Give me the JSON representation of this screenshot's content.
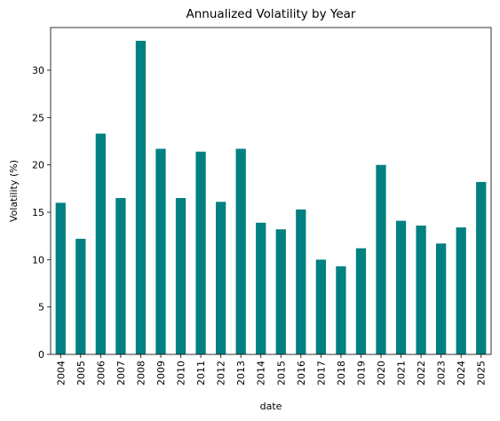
{
  "chart_data": {
    "type": "bar",
    "title": "Annualized Volatility by Year",
    "xlabel": "date",
    "ylabel": "Volatility (%)",
    "categories": [
      "2004",
      "2005",
      "2006",
      "2007",
      "2008",
      "2009",
      "2010",
      "2011",
      "2012",
      "2013",
      "2014",
      "2015",
      "2016",
      "2017",
      "2018",
      "2019",
      "2020",
      "2021",
      "2022",
      "2023",
      "2024",
      "2025"
    ],
    "values": [
      16.0,
      12.2,
      23.3,
      16.5,
      33.1,
      21.7,
      16.5,
      21.4,
      16.1,
      21.7,
      13.9,
      13.2,
      15.3,
      10.0,
      9.3,
      11.2,
      20.0,
      14.1,
      13.6,
      11.7,
      13.4,
      18.2
    ],
    "ylim": [
      0,
      34.5
    ],
    "yticks": [
      0,
      5,
      10,
      15,
      20,
      25,
      30
    ],
    "grid": false,
    "bar_color": "#008080"
  }
}
